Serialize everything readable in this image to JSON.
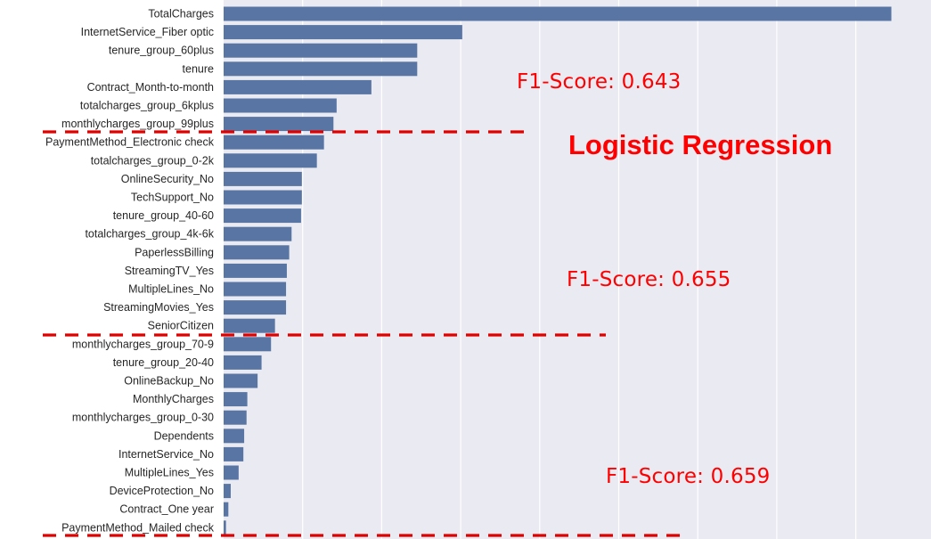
{
  "chart_data": {
    "type": "bar",
    "orientation": "horizontal",
    "categories": [
      "TotalCharges",
      "InternetService_Fiber optic",
      "tenure_group_60plus",
      "tenure",
      "Contract_Month-to-month",
      "totalcharges_group_6kplus",
      "monthlycharges_group_99plus",
      "PaymentMethod_Electronic check",
      "totalcharges_group_0-2k",
      "OnlineSecurity_No",
      "TechSupport_No",
      "tenure_group_40-60",
      "totalcharges_group_4k-6k",
      "PaperlessBilling",
      "StreamingTV_Yes",
      "MultipleLines_No",
      "StreamingMovies_Yes",
      "SeniorCitizen",
      "monthlycharges_group_70-9",
      "tenure_group_20-40",
      "OnlineBackup_No",
      "MonthlyCharges",
      "monthlycharges_group_0-30",
      "Dependents",
      "InternetService_No",
      "MultipleLines_Yes",
      "DeviceProtection_No",
      "Contract_One year",
      "PaymentMethod_Mailed check"
    ],
    "values": [
      8.45,
      3.02,
      2.45,
      2.45,
      1.87,
      1.43,
      1.39,
      1.27,
      1.18,
      0.99,
      0.99,
      0.98,
      0.86,
      0.83,
      0.8,
      0.79,
      0.79,
      0.65,
      0.6,
      0.48,
      0.43,
      0.3,
      0.29,
      0.26,
      0.25,
      0.19,
      0.09,
      0.06,
      0.03
    ],
    "xlim": [
      0,
      8.75
    ],
    "grid": true,
    "bar_color": "#5975a4",
    "background_color": "#eaeaf2",
    "grid_color": "#ffffff",
    "title": "",
    "xlabel": "",
    "ylabel": ""
  },
  "annotations": {
    "f1_score_1": "F1-Score: 0.643",
    "model_title": "Logistic Regression",
    "f1_score_2": "F1-Score: 0.655",
    "f1_score_3": "F1-Score: 0.659",
    "color": "#ff0000"
  }
}
